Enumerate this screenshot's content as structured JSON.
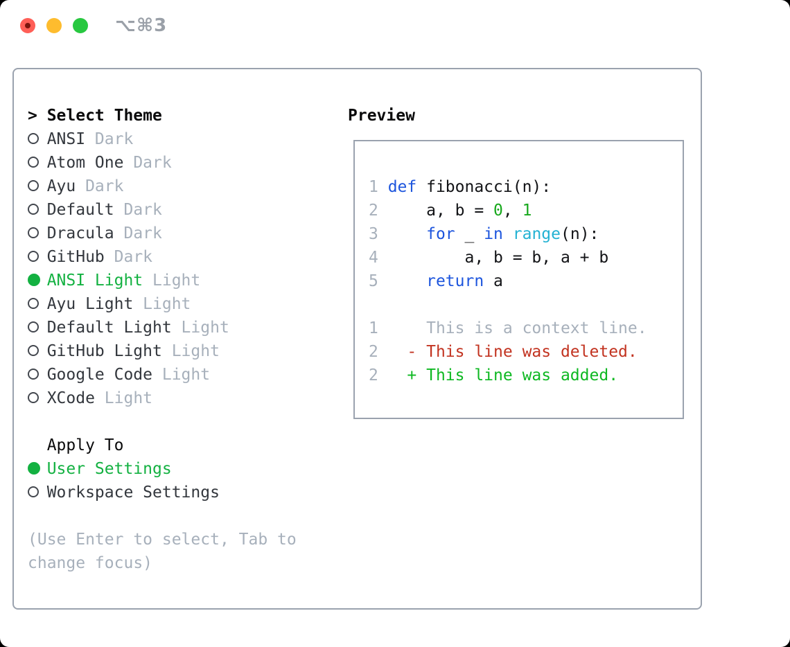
{
  "window": {
    "title": "⌥⌘3"
  },
  "colors": {
    "frameBorder": "#9aa2ae",
    "titlebarText": "#9aa0a8",
    "headerText": "#0a0a0b",
    "itemText": "#33373d",
    "mutedText": "#a7b0bb",
    "radioRing": "#43474e",
    "accentGreen": "#13b141",
    "codeText": "#121316",
    "keywordBlue": "#1d55dd",
    "builtinCyan": "#23b2d3",
    "numberGreen": "#17a81c",
    "deletedRed": "#c23320",
    "addedGreen": "#0eb822",
    "trafficRed": "#ff5f57",
    "trafficRedDot": "#7c150d",
    "trafficYellow": "#febc2e",
    "trafficGreen": "#28c840"
  },
  "theme_picker": {
    "header_prefix": ">",
    "header": "Select Theme",
    "items": [
      {
        "name": "ANSI",
        "variant": "Dark",
        "selected": false
      },
      {
        "name": "Atom One",
        "variant": "Dark",
        "selected": false
      },
      {
        "name": "Ayu",
        "variant": "Dark",
        "selected": false
      },
      {
        "name": "Default",
        "variant": "Dark",
        "selected": false
      },
      {
        "name": "Dracula",
        "variant": "Dark",
        "selected": false
      },
      {
        "name": "GitHub",
        "variant": "Dark",
        "selected": false
      },
      {
        "name": "ANSI Light",
        "variant": "Light",
        "selected": true
      },
      {
        "name": "Ayu Light",
        "variant": "Light",
        "selected": false
      },
      {
        "name": "Default Light",
        "variant": "Light",
        "selected": false
      },
      {
        "name": "GitHub Light",
        "variant": "Light",
        "selected": false
      },
      {
        "name": "Google Code",
        "variant": "Light",
        "selected": false
      },
      {
        "name": "XCode",
        "variant": "Light",
        "selected": false
      }
    ]
  },
  "apply_to": {
    "header": "Apply To",
    "options": [
      {
        "label": "User Settings",
        "selected": true
      },
      {
        "label": "Workspace Settings",
        "selected": false
      }
    ]
  },
  "footer_hint": [
    "(Use Enter to select, Tab to",
    "change focus)"
  ],
  "preview": {
    "header": "Preview",
    "lines": [
      {
        "tokens": [
          {
            "t": "1 ",
            "c": "lnum"
          },
          {
            "t": "def",
            "c": "keyword"
          },
          {
            "t": " fibonacci(n):",
            "c": "plain"
          }
        ]
      },
      {
        "tokens": [
          {
            "t": "2 ",
            "c": "lnum"
          },
          {
            "t": "    a, b = ",
            "c": "plain"
          },
          {
            "t": "0",
            "c": "number"
          },
          {
            "t": ", ",
            "c": "plain"
          },
          {
            "t": "1",
            "c": "number"
          }
        ]
      },
      {
        "tokens": [
          {
            "t": "3 ",
            "c": "lnum"
          },
          {
            "t": "    ",
            "c": "plain"
          },
          {
            "t": "for",
            "c": "keyword"
          },
          {
            "t": " _ ",
            "c": "plain"
          },
          {
            "t": "in",
            "c": "keyword"
          },
          {
            "t": " ",
            "c": "plain"
          },
          {
            "t": "range",
            "c": "builtin"
          },
          {
            "t": "(n):",
            "c": "plain"
          }
        ]
      },
      {
        "tokens": [
          {
            "t": "4 ",
            "c": "lnum"
          },
          {
            "t": "        a, b = b, a + b",
            "c": "plain"
          }
        ]
      },
      {
        "tokens": [
          {
            "t": "5 ",
            "c": "lnum"
          },
          {
            "t": "    ",
            "c": "plain"
          },
          {
            "t": "return",
            "c": "keyword"
          },
          {
            "t": " a",
            "c": "plain"
          }
        ]
      },
      {
        "tokens": []
      },
      {
        "tokens": [
          {
            "t": "1 ",
            "c": "lnum"
          },
          {
            "t": "    This is a context line.",
            "c": "context"
          }
        ]
      },
      {
        "tokens": [
          {
            "t": "2 ",
            "c": "lnum"
          },
          {
            "t": "  - This line was deleted.",
            "c": "deleted"
          }
        ]
      },
      {
        "tokens": [
          {
            "t": "2 ",
            "c": "lnum"
          },
          {
            "t": "  + This line was added.",
            "c": "added"
          }
        ]
      }
    ]
  }
}
